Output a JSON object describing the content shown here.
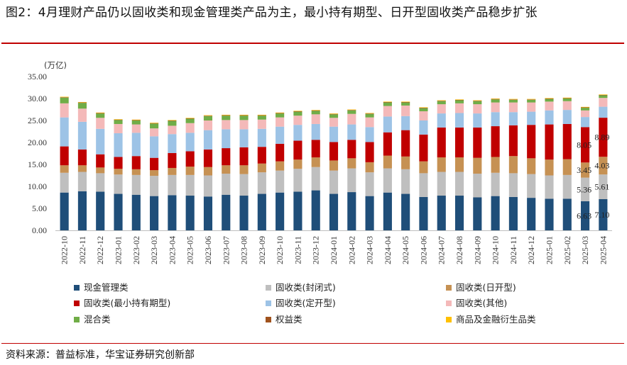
{
  "header": {
    "title": "图2：4月理财产品仍以固收类和现金管理类产品为主，最小持有期型、日开型固收类产品稳步扩张"
  },
  "source": {
    "text": "资料来源：普益标准，华宝证券研究创新部"
  },
  "chart_data": {
    "type": "bar",
    "stacked": true,
    "title": "",
    "ylabel": "(万亿)",
    "xlabel": "",
    "ylim": [
      0,
      35
    ],
    "yticks": [
      "0.00",
      "5.00",
      "10.00",
      "15.00",
      "20.00",
      "25.00",
      "30.00",
      "35.00"
    ],
    "grid": false,
    "legend_position": "bottom",
    "categories": [
      "2022-10",
      "2022-11",
      "2022-12",
      "2023-01",
      "2023-02",
      "2023-03",
      "2023-04",
      "2023-05",
      "2023-06",
      "2023-07",
      "2023-08",
      "2023-09",
      "2023-10",
      "2023-11",
      "2023-12",
      "2024-01",
      "2024-02",
      "2024-03",
      "2024-04",
      "2024-05",
      "2024-06",
      "2024-07",
      "2024-08",
      "2024-09",
      "2024-10",
      "2024-11",
      "2024-12",
      "2025-01",
      "2025-02",
      "2025-03",
      "2025-04"
    ],
    "series": [
      {
        "name": "现金管理类",
        "color": "#1f4e79",
        "values": [
          8.6,
          8.9,
          8.8,
          8.3,
          8.1,
          7.8,
          8.0,
          7.9,
          7.7,
          8.1,
          7.9,
          8.3,
          8.6,
          8.8,
          9.1,
          8.3,
          8.7,
          7.8,
          8.6,
          8.3,
          7.6,
          7.9,
          7.9,
          7.5,
          7.8,
          7.6,
          7.4,
          7.2,
          7.2,
          6.63,
          7.1
        ]
      },
      {
        "name": "固收类(封闭式)",
        "color": "#bfbfbf",
        "values": [
          4.5,
          4.4,
          4.2,
          4.4,
          4.5,
          4.6,
          4.6,
          4.7,
          4.8,
          4.8,
          4.9,
          4.9,
          5.0,
          5.2,
          5.3,
          5.3,
          5.4,
          5.4,
          5.5,
          5.6,
          5.4,
          5.4,
          5.4,
          5.4,
          5.3,
          5.4,
          5.4,
          5.3,
          5.4,
          5.36,
          5.61
        ]
      },
      {
        "name": "固收类(日开型)",
        "color": "#c69153",
        "values": [
          1.7,
          1.5,
          1.3,
          1.3,
          1.3,
          1.3,
          1.6,
          1.9,
          1.9,
          1.9,
          2.0,
          2.0,
          2.1,
          2.1,
          2.2,
          2.3,
          2.3,
          2.3,
          2.9,
          2.9,
          2.7,
          3.3,
          3.3,
          3.6,
          3.6,
          3.9,
          3.6,
          3.6,
          3.6,
          3.45,
          4.03
        ]
      },
      {
        "name": "固收类(最小持有期型)",
        "color": "#c00000",
        "values": [
          4.3,
          3.6,
          3.0,
          2.7,
          3.0,
          2.8,
          3.4,
          3.5,
          4.0,
          3.9,
          4.1,
          3.8,
          4.0,
          4.3,
          4.0,
          4.2,
          4.2,
          4.6,
          5.3,
          6.0,
          6.1,
          6.8,
          6.8,
          6.9,
          7.0,
          7.0,
          7.6,
          8.0,
          8.0,
          8.05,
          8.89
        ]
      },
      {
        "name": "固收类(定开型)",
        "color": "#9dc3e6",
        "values": [
          6.6,
          6.3,
          5.8,
          5.4,
          5.3,
          4.9,
          4.3,
          4.2,
          4.4,
          4.3,
          4.1,
          4.1,
          3.9,
          3.6,
          3.6,
          3.5,
          3.5,
          3.4,
          3.6,
          3.2,
          3.2,
          3.2,
          3.3,
          3.2,
          3.2,
          3.0,
          3.0,
          3.2,
          3.2,
          2.3,
          2.5
        ]
      },
      {
        "name": "固收类(其他)",
        "color": "#f4b9b9",
        "values": [
          3.2,
          3.0,
          2.5,
          2.1,
          1.9,
          1.8,
          1.9,
          2.2,
          2.2,
          2.1,
          2.1,
          2.1,
          2.1,
          2.1,
          2.2,
          2.0,
          2.4,
          2.2,
          2.4,
          2.4,
          2.1,
          2.1,
          2.2,
          2.1,
          2.2,
          2.2,
          2.1,
          2.0,
          2.0,
          1.5,
          2.0
        ]
      },
      {
        "name": "混合类",
        "color": "#70ad47",
        "values": [
          1.3,
          1.3,
          1.0,
          0.9,
          0.9,
          1.1,
          1.1,
          1.0,
          1.0,
          1.0,
          1.0,
          0.9,
          0.9,
          0.9,
          0.8,
          0.8,
          0.8,
          0.8,
          0.8,
          0.7,
          0.7,
          0.7,
          0.7,
          0.7,
          0.7,
          0.6,
          0.6,
          0.6,
          0.6,
          0.6,
          0.6
        ]
      },
      {
        "name": "权益类",
        "color": "#a0521d",
        "values": [
          0.1,
          0.1,
          0.1,
          0.1,
          0.1,
          0.1,
          0.1,
          0.1,
          0.1,
          0.1,
          0.1,
          0.1,
          0.1,
          0.1,
          0.1,
          0.1,
          0.1,
          0.1,
          0.1,
          0.1,
          0.1,
          0.1,
          0.1,
          0.1,
          0.1,
          0.1,
          0.1,
          0.1,
          0.1,
          0.1,
          0.1
        ]
      },
      {
        "name": "商品及金融衍生品类",
        "color": "#ffc000",
        "values": [
          0.1,
          0.1,
          0.1,
          0.1,
          0.1,
          0.1,
          0.1,
          0.1,
          0.1,
          0.1,
          0.1,
          0.1,
          0.1,
          0.1,
          0.1,
          0.1,
          0.1,
          0.1,
          0.1,
          0.1,
          0.1,
          0.1,
          0.1,
          0.1,
          0.1,
          0.1,
          0.1,
          0.1,
          0.1,
          0.1,
          0.1
        ]
      }
    ],
    "annotations": [
      {
        "category": "2025-03",
        "series": "现金管理类",
        "text": "6.63"
      },
      {
        "category": "2025-04",
        "series": "现金管理类",
        "text": "7.10"
      },
      {
        "category": "2025-03",
        "series": "固收类(封闭式)",
        "text": "5.36"
      },
      {
        "category": "2025-04",
        "series": "固收类(封闭式)",
        "text": "5.61"
      },
      {
        "category": "2025-03",
        "series": "固收类(日开型)",
        "text": "3.45"
      },
      {
        "category": "2025-04",
        "series": "固收类(日开型)",
        "text": "4.03"
      },
      {
        "category": "2025-03",
        "series": "固收类(最小持有期型)",
        "text": "8.05"
      },
      {
        "category": "2025-04",
        "series": "固收类(最小持有期型)",
        "text": "8.89"
      }
    ]
  }
}
